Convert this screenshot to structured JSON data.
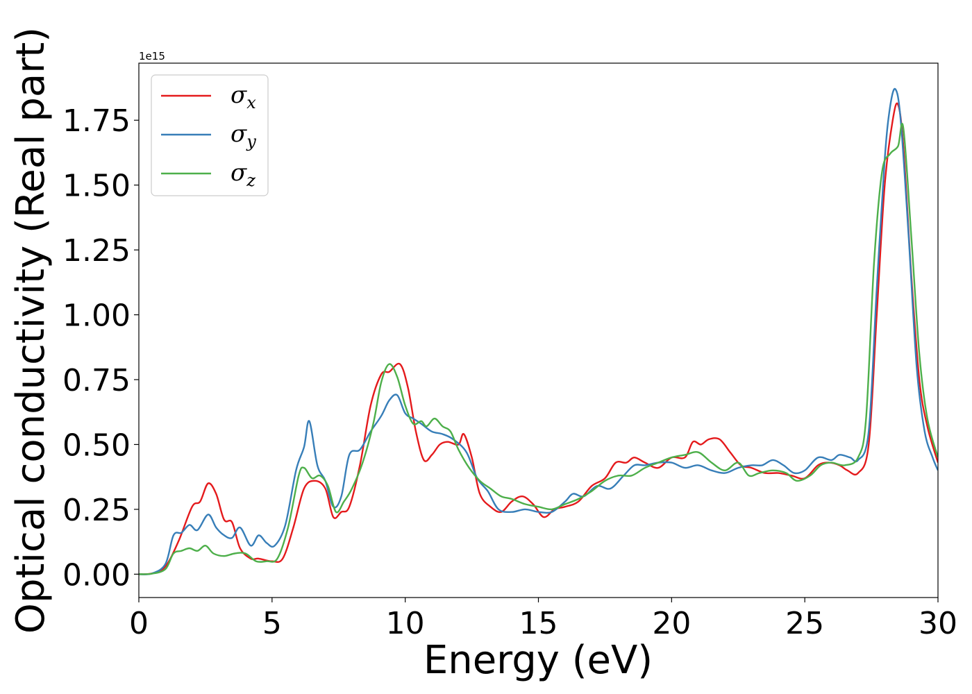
{
  "chart_data": {
    "type": "line",
    "title": "",
    "xlabel": "Energy (eV)",
    "ylabel": "Optical conductivity (Real part)",
    "offset_text": "1e15",
    "xlim": [
      0,
      30
    ],
    "ylim": [
      -0.09,
      1.97
    ],
    "xticks": [
      0,
      5,
      10,
      15,
      20,
      25,
      30
    ],
    "xtick_labels": [
      "0",
      "5",
      "10",
      "15",
      "20",
      "25",
      "30"
    ],
    "yticks": [
      0.0,
      0.25,
      0.5,
      0.75,
      1.0,
      1.25,
      1.5,
      1.75
    ],
    "ytick_labels": [
      "0.00",
      "0.25",
      "0.50",
      "0.75",
      "1.00",
      "1.25",
      "1.50",
      "1.75"
    ],
    "grid": false,
    "legend_position": "top-left",
    "series": [
      {
        "name": "σx",
        "label_main": "σ",
        "label_sub": "x",
        "color": "#e41a1c",
        "points": [
          [
            0,
            0
          ],
          [
            0.5,
            0.003
          ],
          [
            1,
            0.03
          ],
          [
            1.5,
            0.13
          ],
          [
            2,
            0.26
          ],
          [
            2.3,
            0.28
          ],
          [
            2.6,
            0.35
          ],
          [
            2.9,
            0.31
          ],
          [
            3.2,
            0.21
          ],
          [
            3.5,
            0.2
          ],
          [
            3.8,
            0.1
          ],
          [
            4.2,
            0.06
          ],
          [
            4.5,
            0.06
          ],
          [
            5,
            0.05
          ],
          [
            5.4,
            0.06
          ],
          [
            5.8,
            0.18
          ],
          [
            6.2,
            0.33
          ],
          [
            6.6,
            0.36
          ],
          [
            7,
            0.33
          ],
          [
            7.3,
            0.22
          ],
          [
            7.6,
            0.24
          ],
          [
            7.9,
            0.26
          ],
          [
            8.3,
            0.42
          ],
          [
            8.7,
            0.65
          ],
          [
            9.1,
            0.77
          ],
          [
            9.4,
            0.78
          ],
          [
            9.8,
            0.81
          ],
          [
            10.1,
            0.72
          ],
          [
            10.4,
            0.55
          ],
          [
            10.7,
            0.44
          ],
          [
            11,
            0.46
          ],
          [
            11.3,
            0.5
          ],
          [
            11.6,
            0.51
          ],
          [
            12,
            0.5
          ],
          [
            12.2,
            0.54
          ],
          [
            12.5,
            0.45
          ],
          [
            12.8,
            0.31
          ],
          [
            13.2,
            0.26
          ],
          [
            13.6,
            0.24
          ],
          [
            14,
            0.28
          ],
          [
            14.4,
            0.3
          ],
          [
            14.8,
            0.27
          ],
          [
            15.2,
            0.22
          ],
          [
            15.6,
            0.25
          ],
          [
            16,
            0.26
          ],
          [
            16.5,
            0.28
          ],
          [
            17,
            0.34
          ],
          [
            17.5,
            0.37
          ],
          [
            17.9,
            0.43
          ],
          [
            18.3,
            0.43
          ],
          [
            18.6,
            0.45
          ],
          [
            19,
            0.43
          ],
          [
            19.5,
            0.41
          ],
          [
            20,
            0.45
          ],
          [
            20.5,
            0.45
          ],
          [
            20.8,
            0.51
          ],
          [
            21.1,
            0.5
          ],
          [
            21.4,
            0.52
          ],
          [
            21.8,
            0.52
          ],
          [
            22.2,
            0.47
          ],
          [
            22.6,
            0.42
          ],
          [
            23,
            0.41
          ],
          [
            23.5,
            0.39
          ],
          [
            24,
            0.39
          ],
          [
            24.5,
            0.38
          ],
          [
            25,
            0.37
          ],
          [
            25.5,
            0.42
          ],
          [
            25.9,
            0.43
          ],
          [
            26.3,
            0.42
          ],
          [
            26.6,
            0.4
          ],
          [
            27,
            0.39
          ],
          [
            27.4,
            0.5
          ],
          [
            27.7,
            1.0
          ],
          [
            28,
            1.5
          ],
          [
            28.3,
            1.75
          ],
          [
            28.5,
            1.81
          ],
          [
            28.7,
            1.65
          ],
          [
            29,
            1.15
          ],
          [
            29.3,
            0.75
          ],
          [
            29.6,
            0.57
          ],
          [
            30,
            0.43
          ]
        ]
      },
      {
        "name": "σy",
        "label_main": "σ",
        "label_sub": "y",
        "color": "#377eb8",
        "points": [
          [
            0,
            0
          ],
          [
            0.5,
            0.003
          ],
          [
            1,
            0.04
          ],
          [
            1.3,
            0.15
          ],
          [
            1.6,
            0.16
          ],
          [
            1.9,
            0.19
          ],
          [
            2.2,
            0.17
          ],
          [
            2.6,
            0.23
          ],
          [
            2.9,
            0.18
          ],
          [
            3.2,
            0.15
          ],
          [
            3.5,
            0.14
          ],
          [
            3.8,
            0.18
          ],
          [
            4.2,
            0.11
          ],
          [
            4.5,
            0.15
          ],
          [
            4.8,
            0.12
          ],
          [
            5.1,
            0.11
          ],
          [
            5.5,
            0.19
          ],
          [
            5.9,
            0.4
          ],
          [
            6.2,
            0.49
          ],
          [
            6.4,
            0.59
          ],
          [
            6.7,
            0.42
          ],
          [
            7,
            0.36
          ],
          [
            7.3,
            0.26
          ],
          [
            7.6,
            0.3
          ],
          [
            7.9,
            0.46
          ],
          [
            8.3,
            0.48
          ],
          [
            8.7,
            0.55
          ],
          [
            9.1,
            0.61
          ],
          [
            9.4,
            0.67
          ],
          [
            9.7,
            0.69
          ],
          [
            10,
            0.62
          ],
          [
            10.3,
            0.6
          ],
          [
            10.6,
            0.58
          ],
          [
            11,
            0.55
          ],
          [
            11.4,
            0.54
          ],
          [
            11.8,
            0.52
          ],
          [
            12.3,
            0.47
          ],
          [
            12.7,
            0.37
          ],
          [
            13.1,
            0.32
          ],
          [
            13.5,
            0.25
          ],
          [
            14,
            0.24
          ],
          [
            14.5,
            0.25
          ],
          [
            15,
            0.24
          ],
          [
            15.5,
            0.24
          ],
          [
            16,
            0.28
          ],
          [
            16.3,
            0.31
          ],
          [
            16.7,
            0.3
          ],
          [
            17.2,
            0.34
          ],
          [
            17.7,
            0.33
          ],
          [
            18.2,
            0.38
          ],
          [
            18.6,
            0.42
          ],
          [
            19,
            0.42
          ],
          [
            19.5,
            0.43
          ],
          [
            20,
            0.43
          ],
          [
            20.5,
            0.41
          ],
          [
            21,
            0.42
          ],
          [
            21.5,
            0.4
          ],
          [
            22,
            0.39
          ],
          [
            22.5,
            0.41
          ],
          [
            23,
            0.42
          ],
          [
            23.4,
            0.42
          ],
          [
            23.8,
            0.44
          ],
          [
            24.2,
            0.42
          ],
          [
            24.6,
            0.39
          ],
          [
            25,
            0.4
          ],
          [
            25.5,
            0.45
          ],
          [
            26,
            0.44
          ],
          [
            26.3,
            0.46
          ],
          [
            26.7,
            0.45
          ],
          [
            27,
            0.44
          ],
          [
            27.4,
            0.55
          ],
          [
            27.7,
            1.1
          ],
          [
            28,
            1.6
          ],
          [
            28.2,
            1.8
          ],
          [
            28.4,
            1.87
          ],
          [
            28.6,
            1.75
          ],
          [
            28.9,
            1.3
          ],
          [
            29.2,
            0.8
          ],
          [
            29.5,
            0.55
          ],
          [
            29.8,
            0.45
          ],
          [
            30,
            0.4
          ]
        ]
      },
      {
        "name": "σz",
        "label_main": "σ",
        "label_sub": "z",
        "color": "#4daf4a",
        "points": [
          [
            0,
            0
          ],
          [
            0.5,
            0.002
          ],
          [
            1,
            0.02
          ],
          [
            1.3,
            0.08
          ],
          [
            1.6,
            0.09
          ],
          [
            1.9,
            0.1
          ],
          [
            2.2,
            0.09
          ],
          [
            2.5,
            0.11
          ],
          [
            2.8,
            0.08
          ],
          [
            3.2,
            0.07
          ],
          [
            3.6,
            0.08
          ],
          [
            4,
            0.08
          ],
          [
            4.4,
            0.05
          ],
          [
            4.8,
            0.05
          ],
          [
            5.2,
            0.06
          ],
          [
            5.6,
            0.18
          ],
          [
            6,
            0.38
          ],
          [
            6.2,
            0.41
          ],
          [
            6.5,
            0.37
          ],
          [
            6.8,
            0.38
          ],
          [
            7.1,
            0.34
          ],
          [
            7.4,
            0.24
          ],
          [
            7.7,
            0.28
          ],
          [
            8,
            0.33
          ],
          [
            8.4,
            0.43
          ],
          [
            8.8,
            0.58
          ],
          [
            9.1,
            0.74
          ],
          [
            9.4,
            0.81
          ],
          [
            9.7,
            0.76
          ],
          [
            10,
            0.65
          ],
          [
            10.3,
            0.58
          ],
          [
            10.6,
            0.59
          ],
          [
            10.8,
            0.57
          ],
          [
            11.1,
            0.6
          ],
          [
            11.4,
            0.57
          ],
          [
            11.7,
            0.55
          ],
          [
            12,
            0.48
          ],
          [
            12.4,
            0.41
          ],
          [
            12.8,
            0.36
          ],
          [
            13.2,
            0.33
          ],
          [
            13.6,
            0.3
          ],
          [
            14,
            0.29
          ],
          [
            14.5,
            0.27
          ],
          [
            15,
            0.26
          ],
          [
            15.5,
            0.25
          ],
          [
            16,
            0.27
          ],
          [
            16.5,
            0.29
          ],
          [
            17,
            0.32
          ],
          [
            17.5,
            0.36
          ],
          [
            18,
            0.38
          ],
          [
            18.5,
            0.38
          ],
          [
            19,
            0.41
          ],
          [
            19.5,
            0.43
          ],
          [
            20,
            0.45
          ],
          [
            20.5,
            0.46
          ],
          [
            21,
            0.47
          ],
          [
            21.5,
            0.43
          ],
          [
            22,
            0.4
          ],
          [
            22.5,
            0.43
          ],
          [
            22.9,
            0.38
          ],
          [
            23.3,
            0.39
          ],
          [
            23.8,
            0.4
          ],
          [
            24.3,
            0.39
          ],
          [
            24.7,
            0.36
          ],
          [
            25.2,
            0.38
          ],
          [
            25.6,
            0.42
          ],
          [
            26,
            0.43
          ],
          [
            26.5,
            0.42
          ],
          [
            27,
            0.45
          ],
          [
            27.3,
            0.6
          ],
          [
            27.6,
            1.2
          ],
          [
            27.9,
            1.55
          ],
          [
            28.2,
            1.62
          ],
          [
            28.5,
            1.65
          ],
          [
            28.7,
            1.72
          ],
          [
            29,
            1.3
          ],
          [
            29.3,
            0.85
          ],
          [
            29.6,
            0.6
          ],
          [
            30,
            0.45
          ]
        ]
      }
    ]
  }
}
